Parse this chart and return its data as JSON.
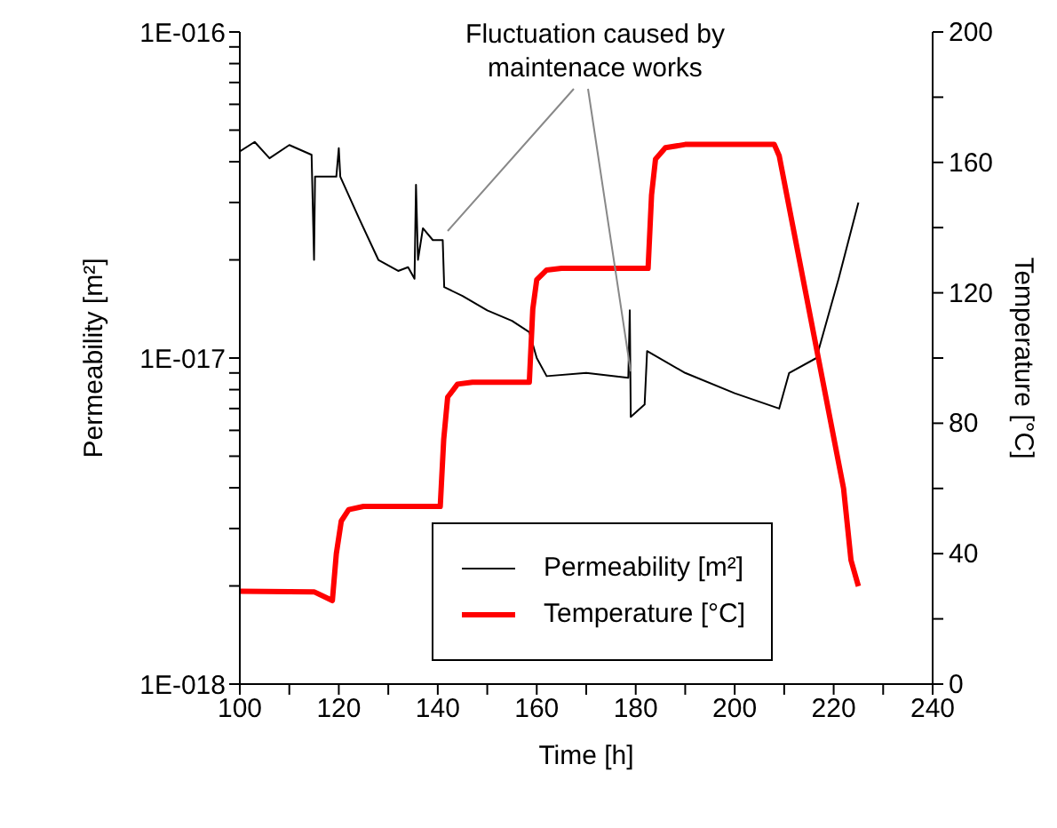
{
  "chart_data": {
    "type": "line",
    "xlabel": "Time [h]",
    "ylabel": "Permeability [m²]",
    "y2label": "Temperature [°C]",
    "annotations": [
      "Fluctuation caused by maintenace works"
    ],
    "xlim": [
      100,
      240
    ],
    "xticks": [
      100,
      {
        "value": 110,
        "label": null
      },
      120,
      {
        "value": 130,
        "label": null
      },
      140,
      {
        "value": 150,
        "label": null
      },
      160,
      {
        "value": 170,
        "label": null
      },
      180,
      {
        "value": 190,
        "label": null
      },
      200,
      {
        "value": 210,
        "label": null
      },
      220,
      {
        "value": 230,
        "label": null
      },
      240
    ],
    "log": "y",
    "ylim": [
      1e-18,
      1e-16
    ],
    "yticks": [
      {
        "value": 1e-18,
        "label": "1E-018"
      },
      {
        "value": 2e-18,
        "label": null
      },
      {
        "value": 3e-18,
        "label": null
      },
      {
        "value": 4e-18,
        "label": null
      },
      {
        "value": 5e-18,
        "label": null
      },
      {
        "value": 6e-18,
        "label": null
      },
      {
        "value": 7e-18,
        "label": null
      },
      {
        "value": 8e-18,
        "label": null
      },
      {
        "value": 9e-18,
        "label": null
      },
      {
        "value": 1e-17,
        "label": "1E-017"
      },
      {
        "value": 2e-17,
        "label": null
      },
      {
        "value": 3e-17,
        "label": null
      },
      {
        "value": 4e-17,
        "label": null
      },
      {
        "value": 5e-17,
        "label": null
      },
      {
        "value": 6e-17,
        "label": null
      },
      {
        "value": 7e-17,
        "label": null
      },
      {
        "value": 8e-17,
        "label": null
      },
      {
        "value": 9e-17,
        "label": null
      },
      {
        "value": 1e-16,
        "label": "1E-016"
      }
    ],
    "y2lim": [
      0,
      200
    ],
    "y2ticks": [
      0,
      {
        "value": 20,
        "label": null
      },
      40,
      {
        "value": 60,
        "label": null
      },
      80,
      {
        "value": 100,
        "label": null
      },
      120,
      {
        "value": 140,
        "label": null
      },
      160,
      {
        "value": 180,
        "label": null
      },
      200
    ],
    "grid": false,
    "legend": "bottom right",
    "marker": "none",
    "series": [
      {
        "name": "Permeability [m²]",
        "color": "#000000",
        "x": [
          100,
          103,
          106,
          110,
          114.5,
          115,
          115.2,
          119.5,
          120,
          120.3,
          124,
          128,
          132,
          134,
          135.3,
          135.6,
          136,
          137,
          139,
          141,
          141.3,
          145,
          150,
          155,
          158.5,
          160,
          162,
          170,
          178.5,
          178.8,
          179,
          181.8,
          182.3,
          190,
          200,
          209,
          211,
          216.5,
          221,
          225
        ],
        "values": [
          4.3e-17,
          4.6e-17,
          4.1e-17,
          4.5e-17,
          4.2e-17,
          2e-17,
          3.6e-17,
          3.6e-17,
          4.4e-17,
          3.6e-17,
          2.7e-17,
          2e-17,
          1.85e-17,
          1.9e-17,
          1.75e-17,
          3.4e-17,
          2e-17,
          2.5e-17,
          2.3e-17,
          2.3e-17,
          1.65e-17,
          1.55e-17,
          1.4e-17,
          1.3e-17,
          1.2e-17,
          1e-17,
          8.8e-18,
          9e-18,
          8.7e-18,
          1.4e-17,
          6.6e-18,
          7.2e-18,
          1.05e-17,
          9e-18,
          7.8e-18,
          7e-18,
          9e-18,
          1e-17,
          1.75e-17,
          3e-17
        ]
      },
      {
        "name": "Temperature [°C]",
        "color": "#ff0000",
        "axis": "y2",
        "x": [
          100,
          115,
          118.7,
          119.5,
          120.5,
          122,
          125,
          140.5,
          141.2,
          142,
          144,
          147,
          158.5,
          159.2,
          160,
          162,
          165,
          182.5,
          183.2,
          184,
          186,
          190,
          208,
          209,
          222,
          223.5,
          225
        ],
        "values": [
          28.5,
          28.3,
          25.6,
          40,
          50,
          53.5,
          54.5,
          54.5,
          75,
          88,
          92,
          92.6,
          92.6,
          115,
          124,
          127,
          127.5,
          127.5,
          150,
          161,
          164.5,
          165.5,
          165.5,
          162,
          60,
          38,
          30
        ]
      }
    ]
  }
}
